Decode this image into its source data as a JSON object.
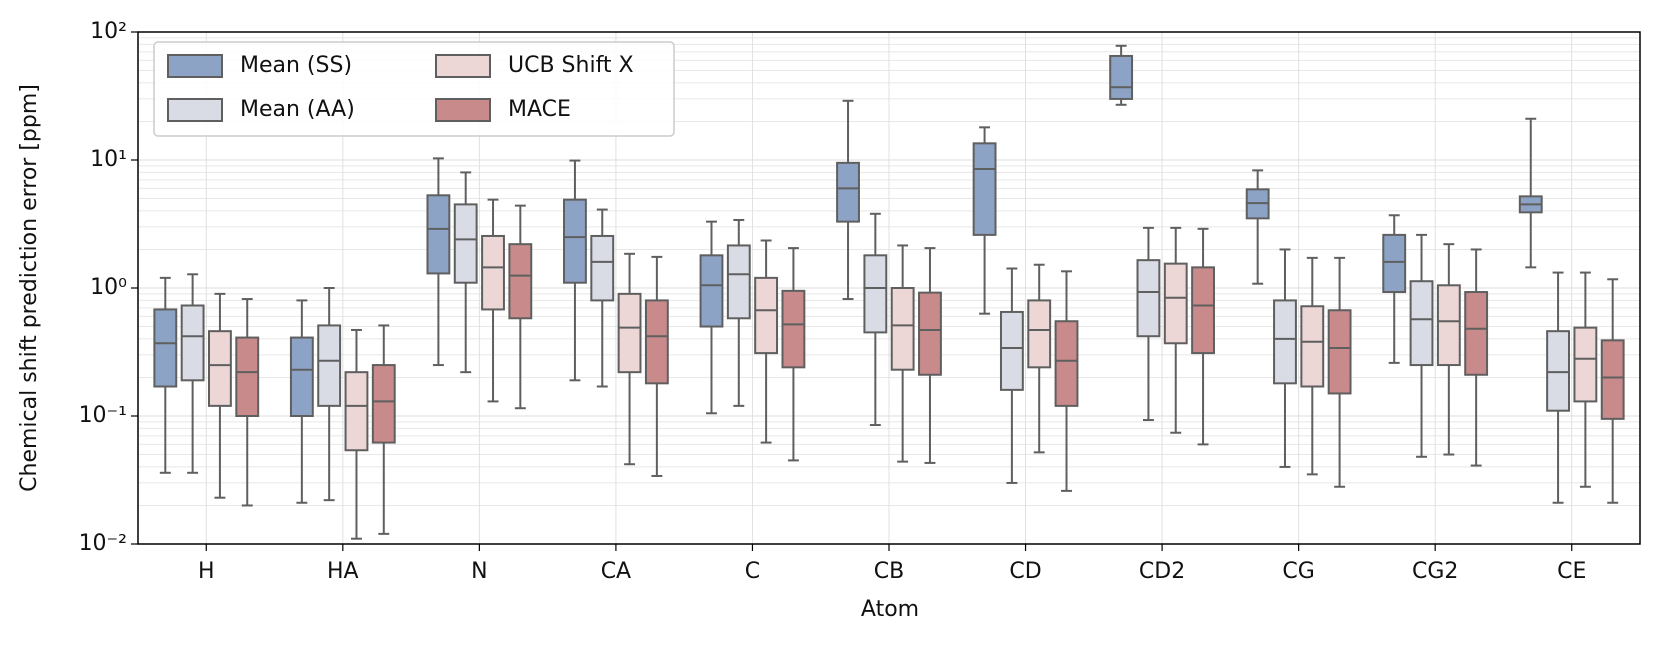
{
  "chart_data": {
    "type": "boxplot",
    "x_label": "Atom",
    "y_label": "Chemical shift prediction error [ppm]",
    "categories": [
      "H",
      "HA",
      "N",
      "CA",
      "C",
      "CB",
      "CD",
      "CD2",
      "CG",
      "CG2",
      "CE"
    ],
    "log_y": true,
    "grid": true,
    "legend": "upper left",
    "ylim": [
      0.01,
      100
    ],
    "yticks": [
      {
        "value": 0.01,
        "label": "10⁻²"
      },
      {
        "value": 0.1,
        "label": "10⁻¹"
      },
      {
        "value": 1,
        "label": "10⁰"
      },
      {
        "value": 10,
        "label": "10¹"
      },
      {
        "value": 100,
        "label": "10²"
      }
    ],
    "series": [
      {
        "name": "Mean (SS)",
        "color": "#8da3c6",
        "whislo": [
          0.036,
          0.021,
          0.25,
          0.19,
          0.105,
          0.82,
          0.63,
          27,
          1.08,
          0.26,
          1.45
        ],
        "q1": [
          0.17,
          0.1,
          1.3,
          1.1,
          0.5,
          3.3,
          2.6,
          30,
          3.5,
          0.93,
          3.9
        ],
        "med": [
          0.37,
          0.23,
          2.9,
          2.5,
          1.05,
          6.0,
          8.5,
          37,
          4.6,
          1.6,
          4.5
        ],
        "q3": [
          0.68,
          0.41,
          5.3,
          4.9,
          1.8,
          9.5,
          13.5,
          65,
          5.9,
          2.6,
          5.2
        ],
        "whishi": [
          1.2,
          0.8,
          10.3,
          9.9,
          3.3,
          29,
          18,
          78,
          8.3,
          3.7,
          21
        ]
      },
      {
        "name": "Mean (AA)",
        "color": "#d9dce5",
        "whislo": [
          0.036,
          0.022,
          0.22,
          0.17,
          0.12,
          0.085,
          0.03,
          0.093,
          0.04,
          0.048,
          0.021
        ],
        "q1": [
          0.19,
          0.12,
          1.1,
          0.8,
          0.58,
          0.45,
          0.16,
          0.42,
          0.18,
          0.25,
          0.11
        ],
        "med": [
          0.42,
          0.27,
          2.4,
          1.6,
          1.28,
          1.0,
          0.34,
          0.93,
          0.4,
          0.57,
          0.22
        ],
        "q3": [
          0.73,
          0.51,
          4.5,
          2.55,
          2.15,
          1.8,
          0.65,
          1.65,
          0.8,
          1.13,
          0.46
        ],
        "whishi": [
          1.28,
          1.0,
          8.0,
          4.1,
          3.4,
          3.8,
          1.42,
          2.95,
          2.0,
          2.6,
          1.32
        ]
      },
      {
        "name": "UCB Shift X",
        "color": "#ecd6d6",
        "whislo": [
          0.023,
          0.011,
          0.13,
          0.042,
          0.062,
          0.044,
          0.052,
          0.074,
          0.035,
          0.05,
          0.028
        ],
        "q1": [
          0.12,
          0.054,
          0.68,
          0.22,
          0.31,
          0.23,
          0.24,
          0.37,
          0.17,
          0.25,
          0.13
        ],
        "med": [
          0.25,
          0.12,
          1.45,
          0.49,
          0.67,
          0.51,
          0.47,
          0.84,
          0.38,
          0.55,
          0.28
        ],
        "q3": [
          0.46,
          0.22,
          2.55,
          0.9,
          1.2,
          1.0,
          0.8,
          1.55,
          0.72,
          1.05,
          0.49
        ],
        "whishi": [
          0.9,
          0.47,
          4.9,
          1.85,
          2.35,
          2.15,
          1.52,
          2.95,
          1.72,
          2.2,
          1.32
        ]
      },
      {
        "name": "MACE",
        "color": "#c88a8a",
        "whislo": [
          0.02,
          0.012,
          0.115,
          0.034,
          0.045,
          0.043,
          0.026,
          0.06,
          0.028,
          0.041,
          0.021
        ],
        "q1": [
          0.1,
          0.062,
          0.58,
          0.18,
          0.24,
          0.21,
          0.12,
          0.31,
          0.15,
          0.21,
          0.095
        ],
        "med": [
          0.22,
          0.13,
          1.25,
          0.42,
          0.52,
          0.47,
          0.27,
          0.73,
          0.34,
          0.48,
          0.2
        ],
        "q3": [
          0.41,
          0.25,
          2.2,
          0.8,
          0.95,
          0.92,
          0.55,
          1.45,
          0.67,
          0.93,
          0.39
        ],
        "whishi": [
          0.82,
          0.51,
          4.4,
          1.75,
          2.05,
          2.05,
          1.35,
          2.9,
          1.72,
          2.0,
          1.17
        ]
      }
    ]
  }
}
